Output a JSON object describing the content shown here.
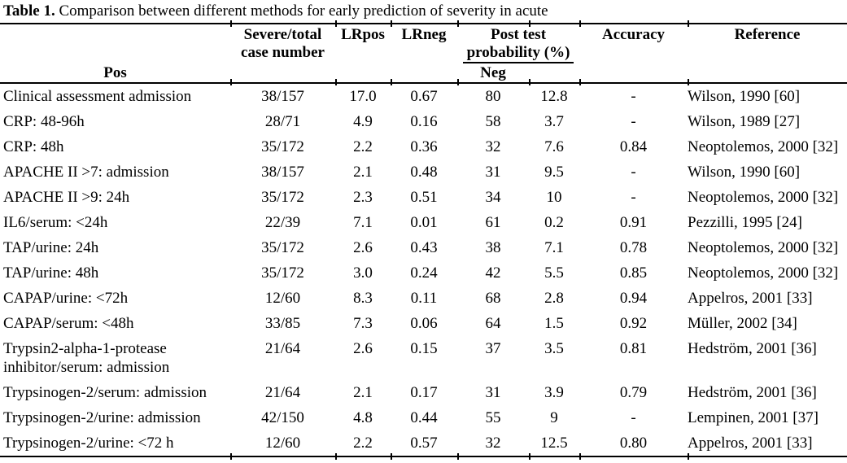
{
  "title": {
    "label": "Table 1.",
    "text": "Comparison between different methods for early prediction of severity in acute"
  },
  "table": {
    "header": {
      "severe_line1": "Severe/total",
      "severe_line2": "case number",
      "lrpos": "LRpos",
      "lrneg": "LRneg",
      "posttest_line1": "Post test",
      "posttest_line2": "probability (%)",
      "pos": "Pos",
      "neg": "Neg",
      "accuracy": "Accuracy",
      "reference": "Reference"
    },
    "rows": [
      {
        "method": "Clinical assessment admission",
        "severe_total": "38/157",
        "lr_pos": "17.0",
        "lr_neg": "0.67",
        "post_pos": "80",
        "post_neg": "12.8",
        "accuracy": "-",
        "reference": "Wilson, 1990 [60]"
      },
      {
        "method": "CRP: 48-96h",
        "severe_total": "28/71",
        "lr_pos": "4.9",
        "lr_neg": "0.16",
        "post_pos": "58",
        "post_neg": "3.7",
        "accuracy": "-",
        "reference": "Wilson, 1989 [27]"
      },
      {
        "method": "CRP: 48h",
        "severe_total": "35/172",
        "lr_pos": "2.2",
        "lr_neg": "0.36",
        "post_pos": "32",
        "post_neg": "7.6",
        "accuracy": "0.84",
        "reference": "Neoptolemos, 2000 [32]"
      },
      {
        "method": "APACHE II >7: admission",
        "severe_total": "38/157",
        "lr_pos": "2.1",
        "lr_neg": "0.48",
        "post_pos": "31",
        "post_neg": "9.5",
        "accuracy": "-",
        "reference": "Wilson, 1990 [60]"
      },
      {
        "method": "APACHE II >9: 24h",
        "severe_total": "35/172",
        "lr_pos": "2.3",
        "lr_neg": "0.51",
        "post_pos": "34",
        "post_neg": "10",
        "accuracy": "-",
        "reference": "Neoptolemos, 2000 [32]"
      },
      {
        "method": "IL6/serum: <24h",
        "severe_total": "22/39",
        "lr_pos": "7.1",
        "lr_neg": "0.01",
        "post_pos": "61",
        "post_neg": "0.2",
        "accuracy": "0.91",
        "reference": "Pezzilli, 1995 [24]"
      },
      {
        "method": "TAP/urine: 24h",
        "severe_total": "35/172",
        "lr_pos": "2.6",
        "lr_neg": "0.43",
        "post_pos": "38",
        "post_neg": "7.1",
        "accuracy": "0.78",
        "reference": "Neoptolemos, 2000 [32]"
      },
      {
        "method": "TAP/urine: 48h",
        "severe_total": "35/172",
        "lr_pos": "3.0",
        "lr_neg": "0.24",
        "post_pos": "42",
        "post_neg": "5.5",
        "accuracy": "0.85",
        "reference": "Neoptolemos, 2000 [32]"
      },
      {
        "method": "CAPAP/urine: <72h",
        "severe_total": "12/60",
        "lr_pos": "8.3",
        "lr_neg": "0.11",
        "post_pos": "68",
        "post_neg": "2.8",
        "accuracy": "0.94",
        "reference": "Appelros, 2001 [33]"
      },
      {
        "method": "CAPAP/serum: <48h",
        "severe_total": "33/85",
        "lr_pos": "7.3",
        "lr_neg": "0.06",
        "post_pos": "64",
        "post_neg": "1.5",
        "accuracy": "0.92",
        "reference": "Müller, 2002 [34]"
      },
      {
        "method": "Trypsin2-alpha-1-protease inhibitor/serum: admission",
        "severe_total": "21/64",
        "lr_pos": "2.6",
        "lr_neg": "0.15",
        "post_pos": "37",
        "post_neg": "3.5",
        "accuracy": "0.81",
        "reference": "Hedström, 2001 [36]"
      },
      {
        "method": "Trypsinogen-2/serum: admission",
        "severe_total": "21/64",
        "lr_pos": "2.1",
        "lr_neg": "0.17",
        "post_pos": "31",
        "post_neg": "3.9",
        "accuracy": "0.79",
        "reference": "Hedström, 2001 [36]"
      },
      {
        "method": "Trypsinogen-2/urine: admission",
        "severe_total": "42/150",
        "lr_pos": "4.8",
        "lr_neg": "0.44",
        "post_pos": "55",
        "post_neg": "9",
        "accuracy": "-",
        "reference": "Lempinen, 2001 [37]"
      },
      {
        "method": "Trypsinogen-2/urine: <72 h",
        "severe_total": "12/60",
        "lr_pos": "2.2",
        "lr_neg": "0.57",
        "post_pos": "32",
        "post_neg": "12.5",
        "accuracy": "0.80",
        "reference": "Appelros, 2001 [33]"
      }
    ]
  }
}
